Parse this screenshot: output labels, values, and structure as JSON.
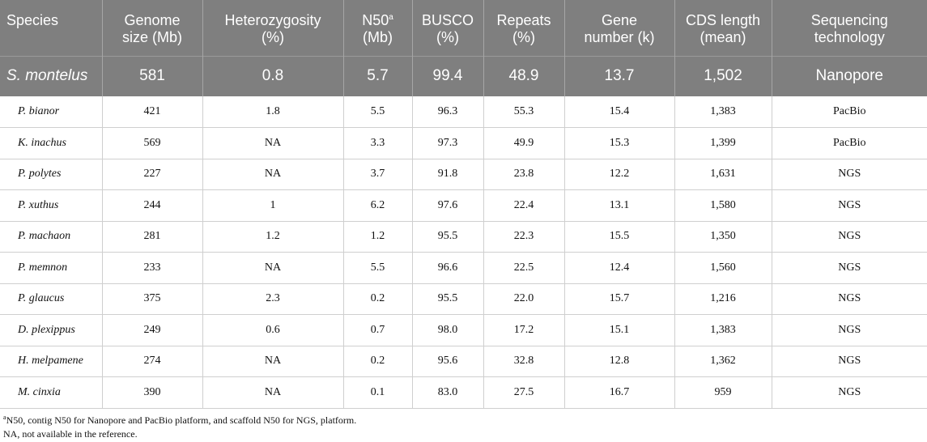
{
  "table": {
    "headers": [
      {
        "line1": "Species",
        "line2": "",
        "sup": ""
      },
      {
        "line1": "Genome",
        "line2": "size (Mb)",
        "sup": ""
      },
      {
        "line1": "Heterozygosity",
        "line2": "(%)",
        "sup": ""
      },
      {
        "line1": "N50",
        "line2": "(Mb)",
        "sup": "a"
      },
      {
        "line1": "BUSCO",
        "line2": "(%)",
        "sup": ""
      },
      {
        "line1": "Repeats",
        "line2": "(%)",
        "sup": ""
      },
      {
        "line1": "Gene",
        "line2": "number (k)",
        "sup": ""
      },
      {
        "line1": "CDS length",
        "line2": "(mean)",
        "sup": ""
      },
      {
        "line1": "Sequencing",
        "line2": "technology",
        "sup": ""
      }
    ],
    "highlight_row": [
      "S. montelus",
      "581",
      "0.8",
      "5.7",
      "99.4",
      "48.9",
      "13.7",
      "1,502",
      "Nanopore"
    ],
    "rows": [
      [
        "P. bianor",
        "421",
        "1.8",
        "5.5",
        "96.3",
        "55.3",
        "15.4",
        "1,383",
        "PacBio"
      ],
      [
        "K. inachus",
        "569",
        "NA",
        "3.3",
        "97.3",
        "49.9",
        "15.3",
        "1,399",
        "PacBio"
      ],
      [
        "P. polytes",
        "227",
        "NA",
        "3.7",
        "91.8",
        "23.8",
        "12.2",
        "1,631",
        "NGS"
      ],
      [
        "P. xuthus",
        "244",
        "1",
        "6.2",
        "97.6",
        "22.4",
        "13.1",
        "1,580",
        "NGS"
      ],
      [
        "P. machaon",
        "281",
        "1.2",
        "1.2",
        "95.5",
        "22.3",
        "15.5",
        "1,350",
        "NGS"
      ],
      [
        "P. memnon",
        "233",
        "NA",
        "5.5",
        "96.6",
        "22.5",
        "12.4",
        "1,560",
        "NGS"
      ],
      [
        "P. glaucus",
        "375",
        "2.3",
        "0.2",
        "95.5",
        "22.0",
        "15.7",
        "1,216",
        "NGS"
      ],
      [
        "D. plexippus",
        "249",
        "0.6",
        "0.7",
        "98.0",
        "17.2",
        "15.1",
        "1,383",
        "NGS"
      ],
      [
        "H. melpamene",
        "274",
        "NA",
        "0.2",
        "95.6",
        "32.8",
        "12.8",
        "1,362",
        "NGS"
      ],
      [
        "M. cinxia",
        "390",
        "NA",
        "0.1",
        "83.0",
        "27.5",
        "16.7",
        "959",
        "NGS"
      ]
    ]
  },
  "footnotes": {
    "a_marker": "a",
    "a_text": "N50, contig N50 for Nanopore and PacBio platform, and scaffold N50 for NGS, platform.",
    "na_text": "NA, not available in the reference."
  },
  "colors": {
    "header_bg": "#7f7f7f",
    "header_text": "#ffffff",
    "grid": "#cfcfcf"
  }
}
